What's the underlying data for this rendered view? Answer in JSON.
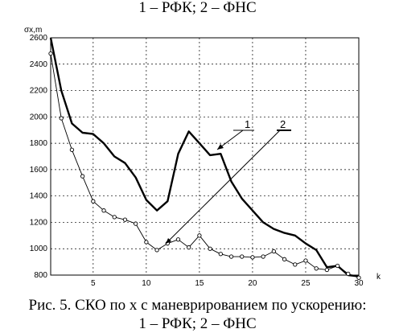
{
  "caption": {
    "top": "1 – РФК; 2 – ФНС",
    "title": "Рис. 5. СКО по x с маневрированием по ускорению:",
    "bottom": "1 – РФК; 2 – ФНС"
  },
  "chart_data": {
    "type": "line",
    "ylabel": "σx,m",
    "xlabel": "k",
    "xlim": [
      1,
      30
    ],
    "ylim": [
      800,
      2600
    ],
    "x_ticks": [
      5,
      10,
      15,
      20,
      25,
      30
    ],
    "y_ticks": [
      800,
      1000,
      1200,
      1400,
      1600,
      1800,
      2000,
      2200,
      2400,
      2600
    ],
    "grid": true,
    "series": [
      {
        "name": "1",
        "color": "#000000",
        "marker": "none",
        "x": [
          1,
          2,
          3,
          4,
          5,
          6,
          7,
          8,
          9,
          10,
          11,
          12,
          13,
          14,
          15,
          16,
          17,
          18,
          19,
          20,
          21,
          22,
          23,
          24,
          25,
          26,
          27,
          28,
          29,
          30
        ],
        "y": [
          2600,
          2200,
          1950,
          1880,
          1870,
          1800,
          1700,
          1650,
          1540,
          1370,
          1290,
          1360,
          1720,
          1890,
          1800,
          1710,
          1720,
          1510,
          1380,
          1290,
          1200,
          1150,
          1120,
          1100,
          1040,
          990,
          860,
          870,
          800,
          790
        ]
      },
      {
        "name": "2",
        "color": "#000000",
        "marker": "circle",
        "x": [
          1,
          2,
          3,
          4,
          5,
          6,
          7,
          8,
          9,
          10,
          11,
          12,
          13,
          14,
          15,
          16,
          17,
          18,
          19,
          20,
          21,
          22,
          23,
          24,
          25,
          26,
          27,
          28,
          29,
          30
        ],
        "y": [
          2480,
          1990,
          1750,
          1550,
          1360,
          1290,
          1240,
          1220,
          1190,
          1050,
          990,
          1040,
          1070,
          1010,
          1100,
          1000,
          960,
          940,
          940,
          935,
          940,
          980,
          920,
          880,
          910,
          850,
          840,
          870,
          810,
          780
        ]
      }
    ],
    "annotations": [
      "1",
      "2"
    ]
  }
}
